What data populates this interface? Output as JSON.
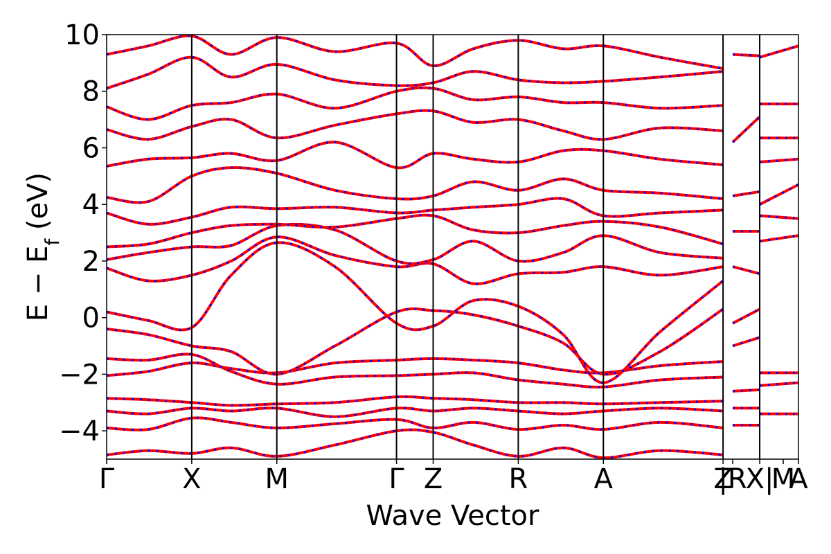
{
  "chart_data": {
    "type": "line",
    "title": "",
    "xlabel": "Wave Vector",
    "ylabel": "E − E_f (eV)",
    "ylabel_parts": {
      "main": "E − E",
      "sub": "f",
      "unit": " (eV)"
    },
    "ylim": [
      -5,
      10
    ],
    "yticks": [
      -4,
      -2,
      0,
      2,
      4,
      6,
      8,
      10
    ],
    "ytick_labels": [
      "−4",
      "−2",
      "0",
      "2",
      "4",
      "6",
      "8",
      "10"
    ],
    "xlim": [
      0,
      1
    ],
    "kpoints": [
      {
        "label": "Γ",
        "x": 0.0
      },
      {
        "label": "X",
        "x": 0.123
      },
      {
        "label": "M",
        "x": 0.246
      },
      {
        "label": "Γ",
        "x": 0.419
      },
      {
        "label": "Z",
        "x": 0.472
      },
      {
        "label": "R",
        "x": 0.595
      },
      {
        "label": "A",
        "x": 0.718
      },
      {
        "label": "Z",
        "x": 0.891
      },
      {
        "label": "|R",
        "x": 0.905
      },
      {
        "label": "X|",
        "x": 0.944
      },
      {
        "label": "M",
        "x": 0.978
      },
      {
        "label": "A",
        "x": 1.0
      }
    ],
    "vlines": [
      0.123,
      0.246,
      0.419,
      0.472,
      0.595,
      0.718,
      0.891,
      0.944
    ],
    "series_colors": {
      "primary": "#ff0000",
      "overlay": "#0000ff"
    },
    "bands": [
      {
        "name": "",
        "x": [
          0,
          0.06,
          0.123,
          0.18,
          0.246,
          0.33,
          0.419,
          0.472,
          0.53,
          0.595,
          0.66,
          0.718,
          0.8,
          0.891
        ],
        "y": [
          -4.85,
          -4.7,
          -4.8,
          -4.6,
          -4.9,
          -4.5,
          -4.0,
          -4.05,
          -4.5,
          -4.9,
          -4.6,
          -4.95,
          -4.7,
          -4.85
        ]
      },
      {
        "name": "",
        "x": [
          0,
          0.06,
          0.123,
          0.18,
          0.246,
          0.33,
          0.419,
          0.472,
          0.53,
          0.595,
          0.66,
          0.718,
          0.8,
          0.891
        ],
        "y": [
          -3.9,
          -3.95,
          -3.55,
          -3.7,
          -3.9,
          -3.75,
          -3.6,
          -3.9,
          -3.7,
          -3.95,
          -3.8,
          -3.95,
          -3.7,
          -3.9
        ]
      },
      {
        "name": "",
        "x": [
          0,
          0.06,
          0.123,
          0.18,
          0.246,
          0.33,
          0.419,
          0.472,
          0.53,
          0.595,
          0.66,
          0.718,
          0.8,
          0.891
        ],
        "y": [
          -3.3,
          -3.4,
          -3.2,
          -3.3,
          -3.2,
          -3.5,
          -3.2,
          -3.3,
          -3.2,
          -3.3,
          -3.4,
          -3.3,
          -3.2,
          -3.3
        ]
      },
      {
        "name": "",
        "x": [
          0,
          0.06,
          0.123,
          0.18,
          0.246,
          0.33,
          0.419,
          0.472,
          0.53,
          0.595,
          0.66,
          0.718,
          0.8,
          0.891
        ],
        "y": [
          -2.85,
          -2.9,
          -3.0,
          -3.1,
          -3.05,
          -3.0,
          -2.8,
          -2.85,
          -2.9,
          -3.0,
          -3.0,
          -3.05,
          -3.0,
          -2.95
        ]
      },
      {
        "name": "",
        "x": [
          0,
          0.06,
          0.123,
          0.18,
          0.246,
          0.33,
          0.419,
          0.472,
          0.53,
          0.595,
          0.66,
          0.718,
          0.8,
          0.891
        ],
        "y": [
          -2.05,
          -1.9,
          -1.6,
          -1.8,
          -1.95,
          -1.6,
          -1.5,
          -1.45,
          -1.5,
          -1.6,
          -1.85,
          -1.95,
          -1.7,
          -1.55
        ]
      },
      {
        "name": "",
        "x": [
          0,
          0.06,
          0.123,
          0.18,
          0.246,
          0.33,
          0.419,
          0.472,
          0.53,
          0.595,
          0.66,
          0.718,
          0.8,
          0.891
        ],
        "y": [
          -1.45,
          -1.5,
          -1.3,
          -1.9,
          -2.35,
          -2.1,
          -2.05,
          -2.0,
          -1.95,
          -2.2,
          -2.35,
          -2.45,
          -2.2,
          -2.1
        ]
      },
      {
        "name": "",
        "x": [
          0,
          0.06,
          0.123,
          0.18,
          0.246,
          0.33,
          0.419,
          0.472,
          0.53,
          0.595,
          0.66,
          0.718,
          0.8,
          0.891
        ],
        "y": [
          -0.4,
          -0.6,
          -1.0,
          -1.2,
          -2.0,
          -1.0,
          0.2,
          0.25,
          0.1,
          -0.3,
          -0.9,
          -2.0,
          -1.2,
          0.3
        ]
      },
      {
        "name": "",
        "x": [
          0,
          0.06,
          0.123,
          0.18,
          0.246,
          0.33,
          0.419,
          0.472,
          0.53,
          0.595,
          0.66,
          0.718,
          0.8,
          0.891
        ],
        "y": [
          0.2,
          -0.1,
          -0.35,
          1.5,
          2.65,
          1.8,
          -0.2,
          -0.3,
          0.6,
          0.4,
          -0.6,
          -2.3,
          -0.5,
          1.3
        ]
      },
      {
        "name": "",
        "x": [
          0,
          0.06,
          0.123,
          0.18,
          0.246,
          0.33,
          0.419,
          0.472,
          0.53,
          0.595,
          0.66,
          0.718,
          0.8,
          0.891
        ],
        "y": [
          1.75,
          1.3,
          1.5,
          2.0,
          2.85,
          2.2,
          1.8,
          1.9,
          1.2,
          1.55,
          1.6,
          1.8,
          1.5,
          1.8
        ]
      },
      {
        "name": "",
        "x": [
          0,
          0.06,
          0.123,
          0.18,
          0.246,
          0.33,
          0.419,
          0.472,
          0.53,
          0.595,
          0.66,
          0.718,
          0.8,
          0.891
        ],
        "y": [
          2.05,
          2.3,
          2.5,
          2.55,
          3.25,
          3.1,
          2.0,
          2.05,
          2.7,
          2.0,
          2.3,
          2.9,
          2.3,
          2.1
        ]
      },
      {
        "name": "",
        "x": [
          0,
          0.06,
          0.123,
          0.18,
          0.246,
          0.33,
          0.419,
          0.472,
          0.53,
          0.595,
          0.66,
          0.718,
          0.8,
          0.891
        ],
        "y": [
          2.5,
          2.6,
          3.0,
          3.25,
          3.3,
          3.2,
          3.5,
          3.6,
          3.1,
          3.0,
          3.25,
          3.4,
          3.2,
          2.6
        ]
      },
      {
        "name": "",
        "x": [
          0,
          0.06,
          0.123,
          0.18,
          0.246,
          0.33,
          0.419,
          0.472,
          0.53,
          0.595,
          0.66,
          0.718,
          0.8,
          0.891
        ],
        "y": [
          3.7,
          3.3,
          3.55,
          3.9,
          3.85,
          3.9,
          3.7,
          3.8,
          3.9,
          4.0,
          4.2,
          3.6,
          3.7,
          3.8
        ]
      },
      {
        "name": "",
        "x": [
          0,
          0.06,
          0.123,
          0.18,
          0.246,
          0.33,
          0.419,
          0.472,
          0.53,
          0.595,
          0.66,
          0.718,
          0.8,
          0.891
        ],
        "y": [
          4.25,
          4.1,
          5.0,
          5.3,
          5.1,
          4.5,
          4.2,
          4.3,
          4.8,
          4.5,
          4.9,
          4.5,
          4.4,
          4.2
        ]
      },
      {
        "name": "",
        "x": [
          0,
          0.06,
          0.123,
          0.18,
          0.246,
          0.33,
          0.419,
          0.472,
          0.53,
          0.595,
          0.66,
          0.718,
          0.8,
          0.891
        ],
        "y": [
          5.35,
          5.6,
          5.65,
          5.8,
          5.55,
          6.2,
          5.3,
          5.8,
          5.6,
          5.5,
          5.9,
          5.9,
          5.6,
          5.4
        ]
      },
      {
        "name": "",
        "x": [
          0,
          0.06,
          0.123,
          0.18,
          0.246,
          0.33,
          0.419,
          0.472,
          0.53,
          0.595,
          0.66,
          0.718,
          0.8,
          0.891
        ],
        "y": [
          6.65,
          6.3,
          6.75,
          7.0,
          6.35,
          6.8,
          7.2,
          7.3,
          6.9,
          7.0,
          6.6,
          6.3,
          6.7,
          6.6
        ]
      },
      {
        "name": "",
        "x": [
          0,
          0.06,
          0.123,
          0.18,
          0.246,
          0.33,
          0.419,
          0.472,
          0.53,
          0.595,
          0.66,
          0.718,
          0.8,
          0.891
        ],
        "y": [
          7.45,
          7.0,
          7.5,
          7.6,
          7.9,
          7.4,
          8.0,
          8.1,
          7.7,
          7.8,
          7.6,
          7.6,
          7.4,
          7.5
        ]
      },
      {
        "name": "",
        "x": [
          0,
          0.06,
          0.123,
          0.18,
          0.246,
          0.33,
          0.419,
          0.472,
          0.53,
          0.595,
          0.66,
          0.718,
          0.8,
          0.891
        ],
        "y": [
          8.1,
          8.6,
          9.2,
          8.5,
          8.95,
          8.4,
          8.2,
          8.3,
          8.7,
          8.4,
          8.3,
          8.35,
          8.5,
          8.7
        ]
      },
      {
        "name": "",
        "x": [
          0,
          0.06,
          0.123,
          0.18,
          0.246,
          0.33,
          0.419,
          0.472,
          0.53,
          0.595,
          0.66,
          0.718,
          0.8,
          0.891
        ],
        "y": [
          9.3,
          9.6,
          9.95,
          9.3,
          9.9,
          9.4,
          9.7,
          8.9,
          9.5,
          9.8,
          9.5,
          9.6,
          9.2,
          8.8
        ]
      },
      {
        "name": "",
        "x": [
          0.905,
          0.944
        ],
        "y": [
          -3.8,
          -3.8
        ]
      },
      {
        "name": "",
        "x": [
          0.905,
          0.944
        ],
        "y": [
          -3.2,
          -3.2
        ]
      },
      {
        "name": "",
        "x": [
          0.905,
          0.944
        ],
        "y": [
          -2.6,
          -2.55
        ]
      },
      {
        "name": "",
        "x": [
          0.905,
          0.944
        ],
        "y": [
          -1.0,
          -0.7
        ]
      },
      {
        "name": "",
        "x": [
          0.905,
          0.944
        ],
        "y": [
          -0.2,
          0.3
        ]
      },
      {
        "name": "",
        "x": [
          0.905,
          0.944
        ],
        "y": [
          1.8,
          1.55
        ]
      },
      {
        "name": "",
        "x": [
          0.905,
          0.944
        ],
        "y": [
          3.05,
          3.05
        ]
      },
      {
        "name": "",
        "x": [
          0.905,
          0.944
        ],
        "y": [
          4.3,
          4.45
        ]
      },
      {
        "name": "",
        "x": [
          0.905,
          0.944
        ],
        "y": [
          6.2,
          7.1
        ]
      },
      {
        "name": "",
        "x": [
          0.905,
          0.944
        ],
        "y": [
          9.3,
          9.25
        ]
      },
      {
        "name": "",
        "x": [
          0.944,
          1.0
        ],
        "y": [
          -3.4,
          -3.4
        ]
      },
      {
        "name": "",
        "x": [
          0.944,
          1.0
        ],
        "y": [
          -2.4,
          -2.3
        ]
      },
      {
        "name": "",
        "x": [
          0.944,
          1.0
        ],
        "y": [
          -1.95,
          -1.95
        ]
      },
      {
        "name": "",
        "x": [
          0.944,
          1.0
        ],
        "y": [
          2.7,
          2.9
        ]
      },
      {
        "name": "",
        "x": [
          0.944,
          1.0
        ],
        "y": [
          3.6,
          3.5
        ]
      },
      {
        "name": "",
        "x": [
          0.944,
          1.0
        ],
        "y": [
          4.0,
          4.7
        ]
      },
      {
        "name": "",
        "x": [
          0.944,
          1.0
        ],
        "y": [
          5.5,
          5.6
        ]
      },
      {
        "name": "",
        "x": [
          0.944,
          1.0
        ],
        "y": [
          6.35,
          6.35
        ]
      },
      {
        "name": "",
        "x": [
          0.944,
          1.0
        ],
        "y": [
          7.55,
          7.55
        ]
      },
      {
        "name": "",
        "x": [
          0.944,
          1.0
        ],
        "y": [
          9.2,
          9.6
        ]
      }
    ],
    "grid": false,
    "legend": "none"
  }
}
